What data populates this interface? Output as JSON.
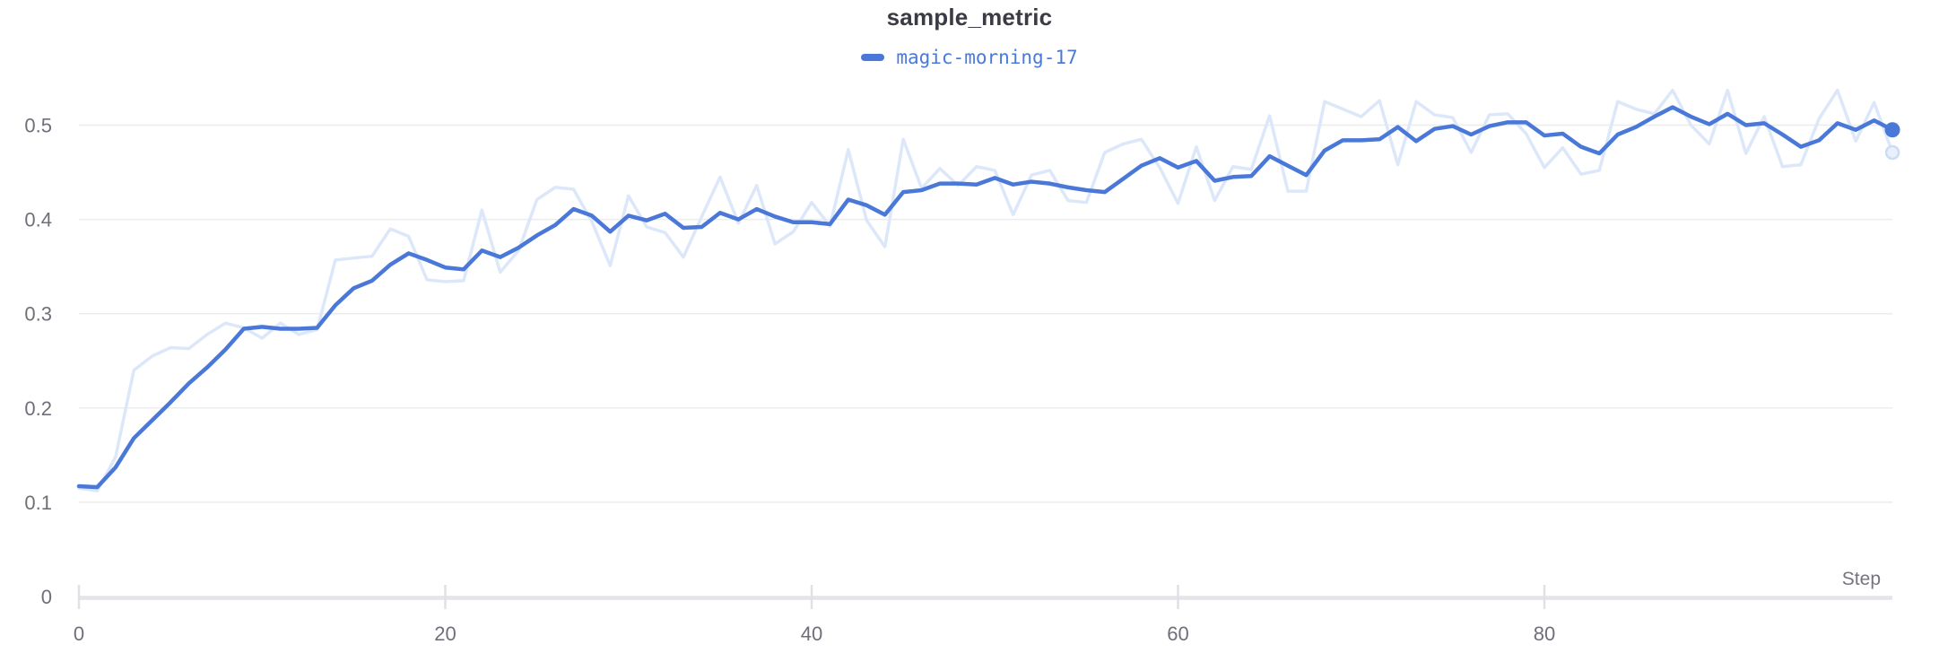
{
  "chart": {
    "title": "sample_metric",
    "legend_label": "magic-morning-17",
    "xlabel": "Step"
  },
  "chart_data": {
    "type": "line",
    "title": "sample_metric",
    "xlabel": "Step",
    "ylabel": "",
    "legend_position": "top-center",
    "grid": "horizontal",
    "xlim": [
      0,
      99
    ],
    "ylim": [
      0,
      0.55
    ],
    "x_ticks": [
      0,
      20,
      40,
      60,
      80
    ],
    "y_ticks": [
      0,
      0.1,
      0.2,
      0.3,
      0.4,
      0.5
    ],
    "x": [
      0,
      1,
      2,
      3,
      4,
      5,
      6,
      7,
      8,
      9,
      10,
      11,
      12,
      13,
      14,
      15,
      16,
      17,
      18,
      19,
      20,
      21,
      22,
      23,
      24,
      25,
      26,
      27,
      28,
      29,
      30,
      31,
      32,
      33,
      34,
      35,
      36,
      37,
      38,
      39,
      40,
      41,
      42,
      43,
      44,
      45,
      46,
      47,
      48,
      49,
      50,
      51,
      52,
      53,
      54,
      55,
      56,
      57,
      58,
      59,
      60,
      61,
      62,
      63,
      64,
      65,
      66,
      67,
      68,
      69,
      70,
      71,
      72,
      73,
      74,
      75,
      76,
      77,
      78,
      79,
      80,
      81,
      82,
      83,
      84,
      85,
      86,
      87,
      88,
      89,
      90,
      91,
      92,
      93,
      94,
      95,
      96,
      97,
      98,
      99
    ],
    "series": [
      {
        "name": "magic-morning-17 (raw)",
        "color": "#dce7f9",
        "role": "unsmoothed-original",
        "values": [
          0.115,
          0.112,
          0.148,
          0.24,
          0.255,
          0.264,
          0.263,
          0.278,
          0.29,
          0.285,
          0.274,
          0.29,
          0.278,
          0.283,
          0.357,
          0.359,
          0.361,
          0.39,
          0.382,
          0.336,
          0.334,
          0.335,
          0.41,
          0.344,
          0.367,
          0.421,
          0.434,
          0.432,
          0.398,
          0.351,
          0.425,
          0.392,
          0.386,
          0.36,
          0.403,
          0.445,
          0.396,
          0.436,
          0.374,
          0.387,
          0.418,
          0.393,
          0.474,
          0.399,
          0.371,
          0.485,
          0.433,
          0.454,
          0.436,
          0.456,
          0.452,
          0.405,
          0.447,
          0.452,
          0.42,
          0.418,
          0.471,
          0.48,
          0.485,
          0.455,
          0.417,
          0.477,
          0.42,
          0.456,
          0.453,
          0.51,
          0.43,
          0.43,
          0.525,
          0.517,
          0.509,
          0.526,
          0.458,
          0.525,
          0.511,
          0.508,
          0.471,
          0.511,
          0.512,
          0.491,
          0.455,
          0.476,
          0.448,
          0.452,
          0.525,
          0.517,
          0.512,
          0.537,
          0.5,
          0.48,
          0.537,
          0.47,
          0.509,
          0.456,
          0.458,
          0.507,
          0.537,
          0.483,
          0.524,
          0.471
        ]
      },
      {
        "name": "magic-morning-17",
        "color": "#4a78d9",
        "role": "smoothed",
        "values": [
          0.117,
          0.116,
          0.137,
          0.168,
          0.187,
          0.206,
          0.226,
          0.243,
          0.262,
          0.284,
          0.286,
          0.284,
          0.284,
          0.285,
          0.309,
          0.327,
          0.335,
          0.352,
          0.364,
          0.357,
          0.349,
          0.347,
          0.367,
          0.36,
          0.37,
          0.383,
          0.394,
          0.411,
          0.404,
          0.387,
          0.404,
          0.399,
          0.406,
          0.391,
          0.392,
          0.407,
          0.4,
          0.411,
          0.403,
          0.397,
          0.397,
          0.395,
          0.421,
          0.415,
          0.405,
          0.429,
          0.431,
          0.438,
          0.438,
          0.437,
          0.444,
          0.437,
          0.44,
          0.438,
          0.434,
          0.431,
          0.429,
          0.443,
          0.457,
          0.465,
          0.455,
          0.462,
          0.441,
          0.445,
          0.446,
          0.467,
          0.457,
          0.447,
          0.473,
          0.484,
          0.484,
          0.485,
          0.498,
          0.483,
          0.496,
          0.499,
          0.49,
          0.499,
          0.503,
          0.503,
          0.489,
          0.491,
          0.477,
          0.47,
          0.49,
          0.498,
          0.509,
          0.519,
          0.509,
          0.501,
          0.512,
          0.5,
          0.502,
          0.49,
          0.477,
          0.484,
          0.502,
          0.495,
          0.505,
          0.495
        ]
      }
    ],
    "colors": {
      "smoothed_line": "#4a78d9",
      "raw_line": "#dce7f9",
      "raw_end_ring_fill": "#e9effb",
      "raw_end_ring_stroke": "#ccdbf6",
      "gridline": "#ececef",
      "axis_line": "#e4e4e9",
      "tick_mark": "#e0e0e6",
      "tick_label": "#6f6f7a",
      "axis_label": "#75757f",
      "title": "#3b3b45",
      "legend_text": "#4a79dc"
    }
  }
}
